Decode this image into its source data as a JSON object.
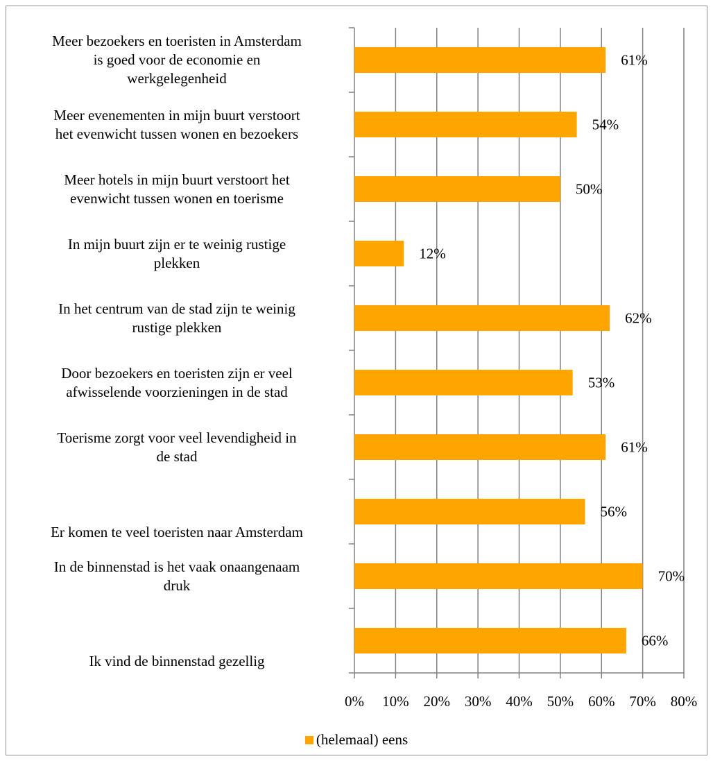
{
  "chart_data": {
    "type": "bar",
    "orientation": "horizontal",
    "categories": [
      "Meer bezoekers en toeristen in Amsterdam is goed voor de economie en werkgelegenheid",
      "Meer evenementen in mijn buurt verstoort het evenwicht tussen wonen en bezoekers",
      "Meer hotels in mijn buurt verstoort het evenwicht tussen wonen en toerisme",
      "In mijn buurt zijn er te weinig rustige plekken",
      "In het centrum van de stad zijn te weinig rustige plekken",
      "Door bezoekers en toeristen zijn er veel afwisselende voorzieningen in de stad",
      "Toerisme zorgt voor veel levendigheid in de stad",
      "Er komen te veel toeristen naar Amsterdam",
      "In de binnenstad is het vaak onaangenaam druk",
      "Ik vind de binnenstad gezellig"
    ],
    "category_lines": [
      [
        "Meer bezoekers en toeristen in Amsterdam",
        "is goed voor de economie en",
        "werkgelegenheid"
      ],
      [
        "Meer evenementen in mijn buurt verstoort",
        "het evenwicht tussen wonen en bezoekers"
      ],
      [
        "Meer hotels in mijn buurt verstoort het",
        "evenwicht tussen wonen en toerisme"
      ],
      [
        "In mijn buurt zijn er te weinig rustige",
        "plekken"
      ],
      [
        "In het centrum van de stad zijn te weinig",
        "rustige plekken"
      ],
      [
        "Door bezoekers en toeristen zijn er veel",
        "afwisselende voorzieningen in de stad"
      ],
      [
        "Toerisme zorgt voor veel levendigheid in",
        "de stad"
      ],
      [
        "Er komen te veel toeristen naar Amsterdam"
      ],
      [
        "In de binnenstad is het vaak onaangenaam",
        "druk"
      ],
      [
        "Ik vind de binnenstad gezellig"
      ]
    ],
    "series": [
      {
        "name": "(helemaal) eens",
        "values": [
          61,
          54,
          50,
          12,
          62,
          53,
          61,
          56,
          70,
          66
        ],
        "labels": [
          "61%",
          "54%",
          "50%",
          "12%",
          "62%",
          "53%",
          "61%",
          "56%",
          "70%",
          "66%"
        ],
        "color": "#ffa500"
      }
    ],
    "xlim": [
      0,
      80
    ],
    "xticks": [
      "0%",
      "10%",
      "20%",
      "30%",
      "40%",
      "50%",
      "60%",
      "70%",
      "80%"
    ],
    "grid": true,
    "legend_position": "bottom",
    "title": "",
    "xlabel": "",
    "ylabel": ""
  },
  "colors": {
    "bar": "#ffa500",
    "grid": "#808080",
    "axis": "#808080"
  }
}
